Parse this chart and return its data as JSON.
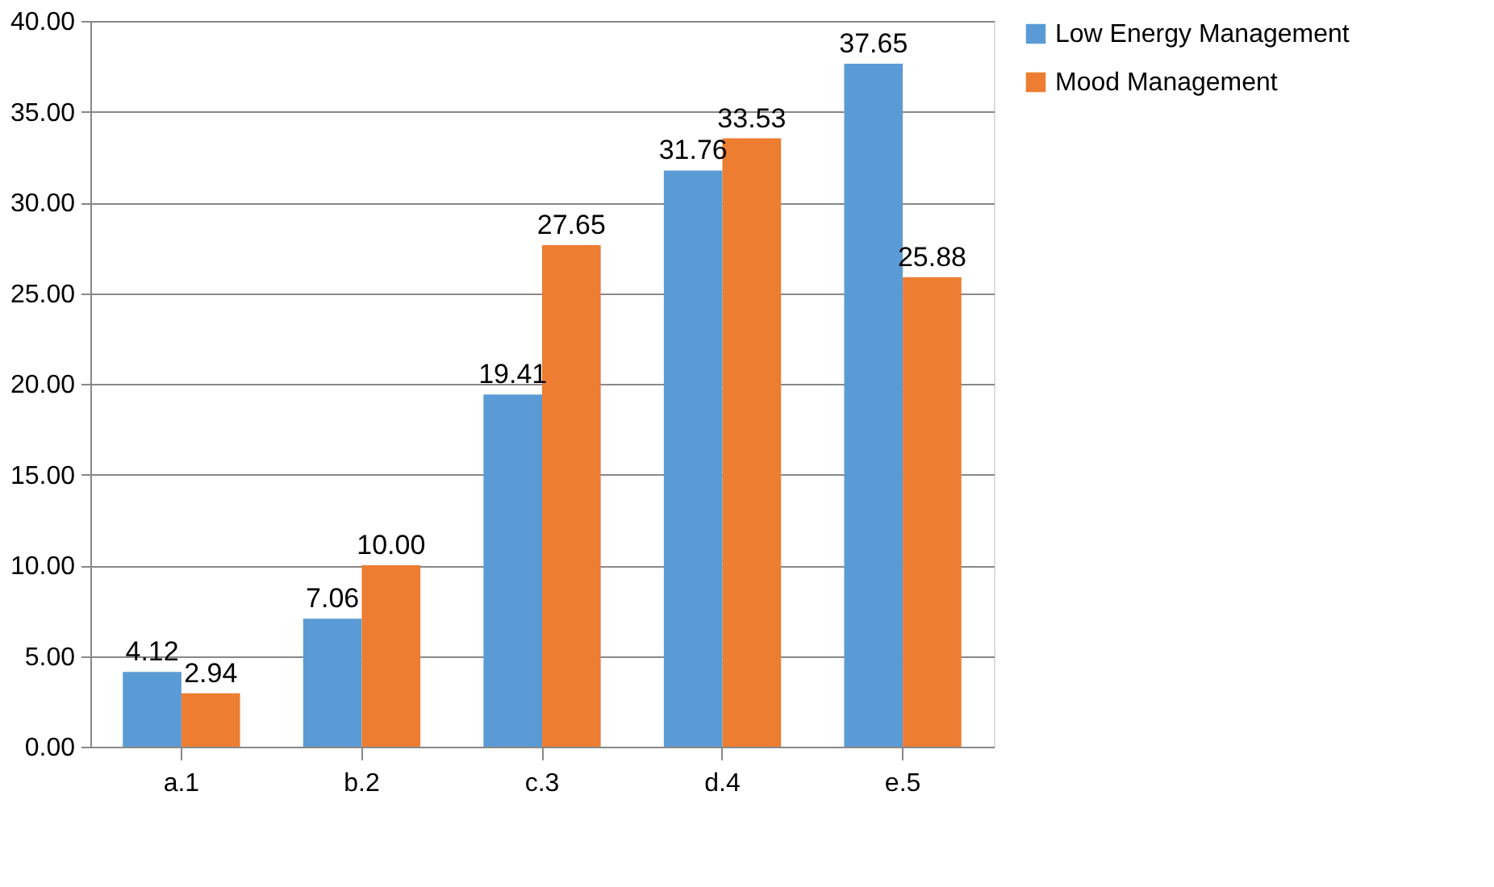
{
  "chart_data": {
    "type": "bar",
    "categories": [
      "a.1",
      "b.2",
      "c.3",
      "d.4",
      "e.5"
    ],
    "series": [
      {
        "name": "Low Energy Management",
        "color": "#5b9bd5",
        "values": [
          4.12,
          7.06,
          19.41,
          31.76,
          37.65
        ],
        "value_labels": [
          "4.12",
          "7.06",
          "19.41",
          "31.76",
          "37.65"
        ]
      },
      {
        "name": "Mood Management",
        "color": "#ed7d31",
        "values": [
          2.94,
          10.0,
          27.65,
          33.53,
          25.88
        ],
        "value_labels": [
          "2.94",
          "10.00",
          "27.65",
          "33.53",
          "25.88"
        ]
      }
    ],
    "ylim": [
      0,
      40
    ],
    "yticks": [
      {
        "value": 0,
        "label": "0.00"
      },
      {
        "value": 5,
        "label": "5.00"
      },
      {
        "value": 10,
        "label": "10.00"
      },
      {
        "value": 15,
        "label": "15.00"
      },
      {
        "value": 20,
        "label": "20.00"
      },
      {
        "value": 25,
        "label": "25.00"
      },
      {
        "value": 30,
        "label": "30.00"
      },
      {
        "value": 35,
        "label": "35.00"
      },
      {
        "value": 40,
        "label": "40.00"
      }
    ],
    "grid": "y",
    "legend": "right"
  }
}
